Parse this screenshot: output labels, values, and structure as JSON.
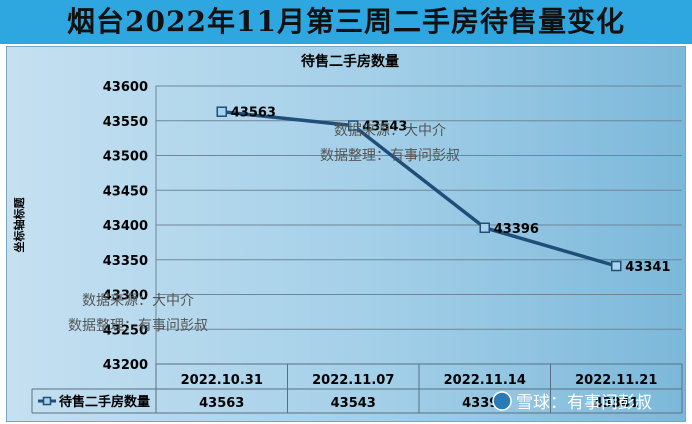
{
  "banner": {
    "title": "烟台2022年11月第三周二手房待售量变化"
  },
  "chart_data": {
    "type": "line",
    "title": "待售二手房数量",
    "ylabel": "坐标轴标题",
    "xlabel": "",
    "categories": [
      "2022.10.31",
      "2022.11.07",
      "2022.11.14",
      "2022.11.21"
    ],
    "series": [
      {
        "name": "待售二手房数量",
        "values": [
          43563,
          43543,
          43396,
          43341
        ]
      }
    ],
    "ylim": [
      43200,
      43600
    ],
    "yticks": [
      43600,
      43550,
      43500,
      43450,
      43400,
      43350,
      43300,
      43250,
      43200
    ],
    "grid": true,
    "data_labels": true,
    "data_table": true,
    "line_color": "#1f4e79"
  },
  "watermarks": {
    "top_line1": "数据来源：大中介",
    "top_line2": "数据整理：有事问彭叔",
    "left_line1": "数据来源：大中介",
    "left_line2": "数据整理：有事问彭叔",
    "corner": "雪球：有事问彭叔"
  }
}
